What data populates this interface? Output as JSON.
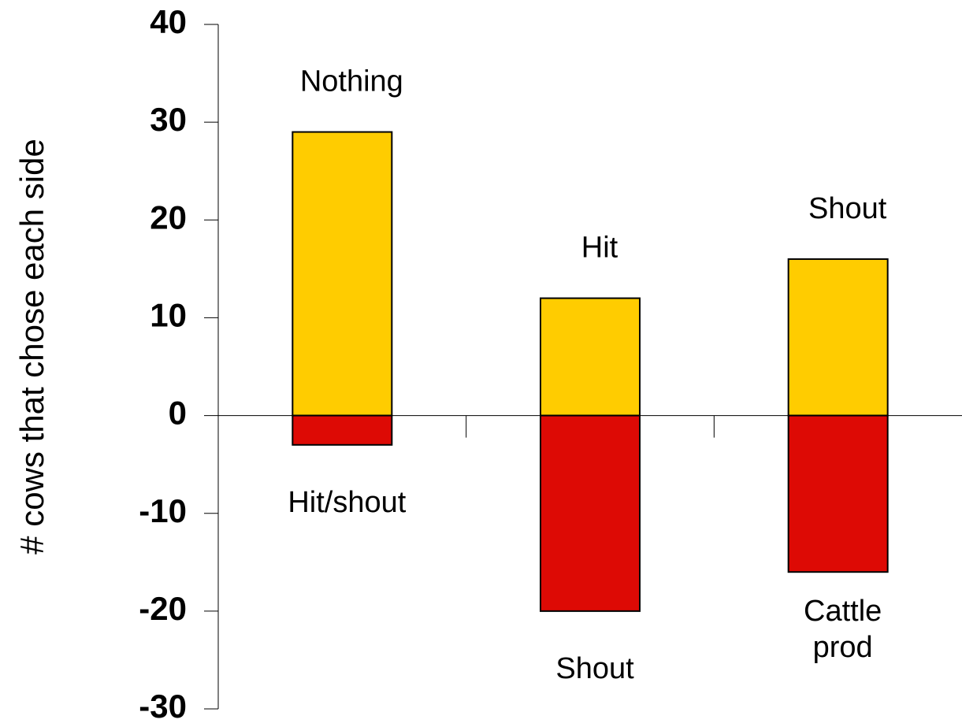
{
  "chart_data": {
    "type": "bar",
    "y_label": "# cows that chose each side",
    "categories": [
      null,
      null,
      null
    ],
    "series": [
      {
        "color": "#ffcc00",
        "values": [
          29,
          12,
          16
        ],
        "labels": [
          "Nothing",
          "Hit",
          "Shout"
        ]
      },
      {
        "color": "#dd0a05",
        "values": [
          -3,
          -20,
          -16
        ],
        "labels": [
          "Hit/shout",
          "Shout",
          [
            "Cattle",
            "prod"
          ]
        ]
      }
    ],
    "ylim": [
      -30,
      40
    ],
    "yticks": [
      -30,
      -20,
      -10,
      0,
      10,
      20,
      30,
      40
    ],
    "grid": false
  }
}
